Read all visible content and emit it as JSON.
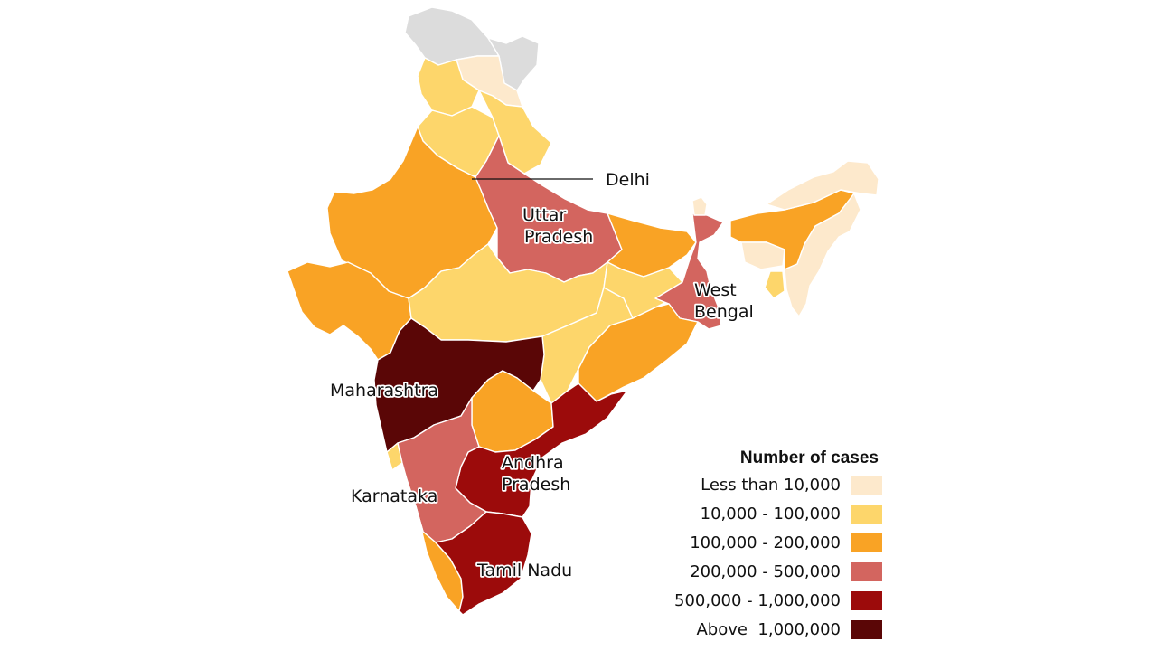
{
  "map": {
    "labels": {
      "delhi": "Delhi",
      "uttar_pradesh": [
        "Uttar",
        "Pradesh"
      ],
      "west_bengal": [
        "West",
        "Bengal"
      ],
      "maharashtra": "Maharashtra",
      "karnataka": "Karnataka",
      "andhra_pradesh": [
        "Andhra",
        "Pradesh"
      ],
      "tamil_nadu": "Tamil Nadu"
    },
    "colors": {
      "no_data": "#dcdcdc",
      "lt_10k": "#fde9cc",
      "10k_100k": "#fdd66b",
      "100k_200k": "#f9a325",
      "200k_500k": "#d3655f",
      "500k_1m": "#9c0b0b",
      "above_1m": "#5a0606"
    },
    "regions": [
      {
        "name": "Jammu and Kashmir",
        "category": "no_data"
      },
      {
        "name": "Ladakh",
        "category": "no_data"
      },
      {
        "name": "Himachal Pradesh",
        "category": "lt_10k"
      },
      {
        "name": "Punjab",
        "category": "10k_100k"
      },
      {
        "name": "Haryana",
        "category": "10k_100k"
      },
      {
        "name": "Uttarakhand",
        "category": "10k_100k"
      },
      {
        "name": "Delhi",
        "category": "200k_500k"
      },
      {
        "name": "Rajasthan",
        "category": "100k_200k"
      },
      {
        "name": "Gujarat",
        "category": "100k_200k"
      },
      {
        "name": "Uttar Pradesh",
        "category": "200k_500k"
      },
      {
        "name": "Bihar",
        "category": "100k_200k"
      },
      {
        "name": "Madhya Pradesh",
        "category": "10k_100k"
      },
      {
        "name": "Chhattisgarh",
        "category": "10k_100k"
      },
      {
        "name": "Jharkhand",
        "category": "10k_100k"
      },
      {
        "name": "West Bengal",
        "category": "200k_500k"
      },
      {
        "name": "Sikkim",
        "category": "lt_10k"
      },
      {
        "name": "Assam",
        "category": "100k_200k"
      },
      {
        "name": "Arunachal Pradesh",
        "category": "lt_10k"
      },
      {
        "name": "Meghalaya",
        "category": "lt_10k"
      },
      {
        "name": "Tripura",
        "category": "10k_100k"
      },
      {
        "name": "Northeast states",
        "category": "lt_10k"
      },
      {
        "name": "Odisha",
        "category": "100k_200k"
      },
      {
        "name": "Maharashtra",
        "category": "above_1m"
      },
      {
        "name": "Telangana",
        "category": "100k_200k"
      },
      {
        "name": "Andhra Pradesh",
        "category": "500k_1m"
      },
      {
        "name": "Goa",
        "category": "10k_100k"
      },
      {
        "name": "Karnataka",
        "category": "200k_500k"
      },
      {
        "name": "Kerala",
        "category": "100k_200k"
      },
      {
        "name": "Tamil Nadu",
        "category": "500k_1m"
      }
    ]
  },
  "legend": {
    "title": "Number of cases",
    "items": [
      {
        "label": "Less than 10,000",
        "color": "#fde9cc"
      },
      {
        "label": "10,000 - 100,000",
        "color": "#fdd66b"
      },
      {
        "label": "100,000 - 200,000",
        "color": "#f9a325"
      },
      {
        "label": "200,000 - 500,000",
        "color": "#d3655f"
      },
      {
        "label": "500,000 - 1,000,000",
        "color": "#9c0b0b"
      },
      {
        "label": "Above  1,000,000",
        "color": "#5a0606"
      }
    ]
  }
}
